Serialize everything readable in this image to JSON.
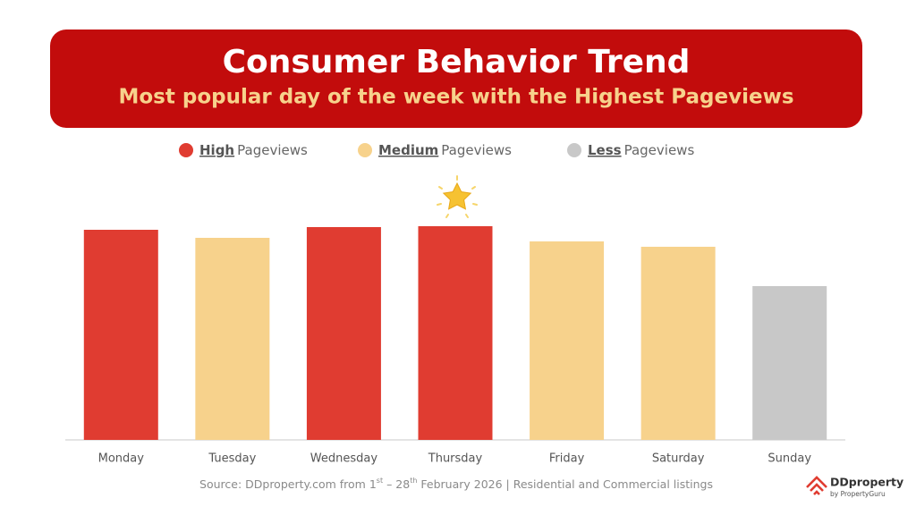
{
  "chart_data": {
    "type": "bar",
    "title": "Consumer Behavior Trend",
    "subtitle": "Most popular day of the week with the Highest Pageviews",
    "legend": [
      {
        "bold": "High",
        "text": "Pageviews",
        "color": "#e03c31"
      },
      {
        "bold": "Medium",
        "text": "Pageviews",
        "color": "#f7d28c"
      },
      {
        "bold": "Less",
        "text": "Pageviews",
        "color": "#c8c8c8"
      }
    ],
    "categories": [
      "Monday",
      "Tuesday",
      "Wednesday",
      "Thursday",
      "Friday",
      "Saturday",
      "Sunday"
    ],
    "values": [
      235,
      226,
      238,
      239,
      222,
      216,
      172
    ],
    "colors": [
      "#e03c31",
      "#f7d28c",
      "#e03c31",
      "#e03c31",
      "#f7d28c",
      "#f7d28c",
      "#c8c8c8"
    ],
    "source": [
      "Source: DDproperty.com from 1",
      "st",
      " – 28",
      "th",
      " February 2026 | Residential and Commercial listings"
    ],
    "logo": {
      "name": "DDproperty",
      "by": "by PropertyGuru"
    }
  }
}
